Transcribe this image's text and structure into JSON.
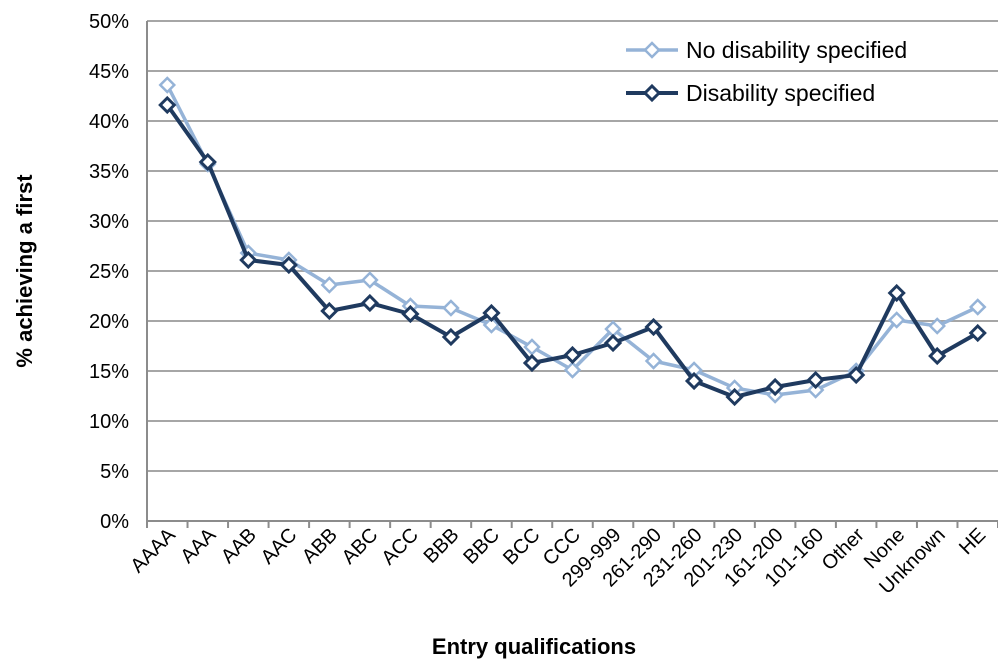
{
  "chart_data": {
    "type": "line",
    "title": "",
    "xlabel": "Entry qualifications",
    "ylabel": "% achieving a first",
    "ylim": [
      0,
      50
    ],
    "y_ticks": [
      "0%",
      "5%",
      "10%",
      "15%",
      "20%",
      "25%",
      "30%",
      "35%",
      "40%",
      "45%",
      "50%"
    ],
    "grid": true,
    "legend_position": "top-right",
    "categories": [
      "AAAA",
      "AAA",
      "AAB",
      "AAC",
      "ABB",
      "ABC",
      "ACC",
      "BBB",
      "BBC",
      "BCC",
      "CCC",
      "299-999",
      "261-290",
      "231-260",
      "201-230",
      "161-200",
      "101-160",
      "Other",
      "None",
      "Unknown",
      "HE"
    ],
    "series": [
      {
        "name": "No disability specified",
        "color": "#95B3D7",
        "values": [
          43.6,
          35.7,
          26.8,
          26.1,
          23.6,
          24.1,
          21.5,
          21.3,
          19.6,
          17.4,
          15.1,
          19.2,
          16.0,
          15.1,
          13.3,
          12.6,
          13.1,
          15.0,
          20.1,
          19.5,
          21.4
        ]
      },
      {
        "name": "Disability specified",
        "color": "#1F3A5F",
        "values": [
          41.6,
          35.9,
          26.1,
          25.6,
          21.0,
          21.8,
          20.7,
          18.4,
          20.8,
          15.8,
          16.6,
          17.8,
          19.4,
          14.0,
          12.4,
          13.4,
          14.1,
          14.6,
          22.8,
          16.5,
          18.8
        ]
      }
    ]
  }
}
